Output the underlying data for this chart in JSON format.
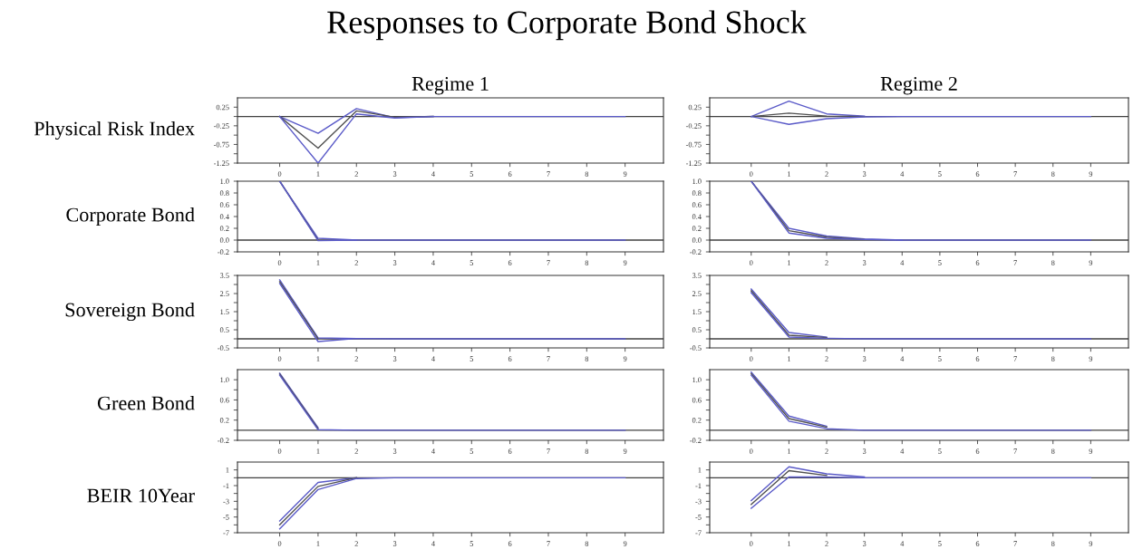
{
  "chart_data": [
    {
      "type": "line",
      "title": "Regime 1",
      "ylabel": "Physical Risk Index",
      "annotations": [
        "Responses to Corporate Bond Shock"
      ],
      "x": [
        0,
        1,
        2,
        3,
        4,
        5,
        6,
        7,
        8,
        9
      ],
      "xlim": [
        -1.1,
        10
      ],
      "xticks": [
        0,
        1,
        2,
        3,
        4,
        5,
        6,
        7,
        8,
        9
      ],
      "ylim": [
        -1.25,
        0.5
      ],
      "yticks": [
        0.25,
        {
          "value": 0,
          "label": null
        },
        -0.25,
        {
          "value": -0.5,
          "label": null
        },
        -0.75,
        {
          "value": -1.0,
          "label": null
        },
        -1.25
      ],
      "ref_lines": [
        {
          "axis": "y",
          "value": 0,
          "color": "#404040"
        }
      ],
      "grid": false,
      "legend": false,
      "series": [
        {
          "color": "#5a5ac8",
          "values": [
            0,
            -0.45,
            0.21,
            -0.03,
            0,
            null,
            null,
            null,
            null,
            null
          ]
        },
        {
          "color": "#505050",
          "values": [
            0,
            -0.85,
            0.15,
            -0.02,
            0,
            null,
            null,
            null,
            null,
            null
          ]
        },
        {
          "color": "#5a5ac8",
          "values": [
            0,
            -1.25,
            0.07,
            -0.04,
            0,
            0,
            0,
            0,
            0,
            0
          ]
        }
      ]
    },
    {
      "type": "line",
      "title": "Regime 2",
      "x": [
        0,
        1,
        2,
        3,
        4,
        5,
        6,
        7,
        8,
        9
      ],
      "xlim": [
        -1.1,
        10
      ],
      "xticks": [
        0,
        1,
        2,
        3,
        4,
        5,
        6,
        7,
        8,
        9
      ],
      "ylim": [
        -1.25,
        0.5
      ],
      "yticks": [
        0.25,
        {
          "value": 0,
          "label": null
        },
        -0.25,
        {
          "value": -0.5,
          "label": null
        },
        -0.75,
        {
          "value": -1.0,
          "label": null
        },
        -1.25
      ],
      "ref_lines": [
        {
          "axis": "y",
          "value": 0,
          "color": "#404040"
        }
      ],
      "grid": false,
      "legend": false,
      "series": [
        {
          "color": "#5a5ac8",
          "values": [
            0,
            0.41,
            0.07,
            0.01,
            null,
            null,
            null,
            null,
            null,
            null
          ]
        },
        {
          "color": "#505050",
          "values": [
            0,
            0.09,
            0.01,
            0,
            null,
            null,
            null,
            null,
            null,
            null
          ]
        },
        {
          "color": "#5a5ac8",
          "values": [
            0,
            -0.21,
            -0.06,
            -0.01,
            0,
            0,
            0,
            0,
            0,
            0
          ]
        }
      ]
    },
    {
      "type": "line",
      "ylabel": "Corporate Bond",
      "x": [
        0,
        1,
        2,
        3,
        4,
        5,
        6,
        7,
        8,
        9
      ],
      "xlim": [
        -1.1,
        10
      ],
      "xticks": [
        0,
        1,
        2,
        3,
        4,
        5,
        6,
        7,
        8,
        9
      ],
      "ylim": [
        -0.2,
        1.0
      ],
      "yticks": [
        {
          "value": 1.0,
          "label": "1.0"
        },
        0.8,
        0.6,
        0.4,
        0.2,
        {
          "value": 0,
          "label": "0.0"
        },
        -0.2
      ],
      "ref_lines": [
        {
          "axis": "y",
          "value": 0,
          "color": "#404040"
        }
      ],
      "grid": false,
      "legend": false,
      "series": [
        {
          "color": "#5a5ac8",
          "values": [
            1.0,
            0.03,
            0,
            null,
            null,
            null,
            null,
            null,
            null,
            null
          ]
        },
        {
          "color": "#505050",
          "values": [
            1.0,
            0.0,
            null,
            null,
            null,
            null,
            null,
            null,
            null,
            null
          ]
        },
        {
          "color": "#5a5ac8",
          "values": [
            1.0,
            -0.01,
            0,
            0,
            0,
            0,
            0,
            0,
            0,
            0
          ]
        }
      ]
    },
    {
      "type": "line",
      "x": [
        0,
        1,
        2,
        3,
        4,
        5,
        6,
        7,
        8,
        9
      ],
      "xlim": [
        -1.1,
        10
      ],
      "xticks": [
        0,
        1,
        2,
        3,
        4,
        5,
        6,
        7,
        8,
        9
      ],
      "ylim": [
        -0.2,
        1.0
      ],
      "yticks": [
        {
          "value": 1.0,
          "label": "1.0"
        },
        0.8,
        0.6,
        0.4,
        0.2,
        {
          "value": 0,
          "label": "0.0"
        },
        -0.2
      ],
      "ref_lines": [
        {
          "axis": "y",
          "value": 0,
          "color": "#404040"
        }
      ],
      "grid": false,
      "legend": false,
      "series": [
        {
          "color": "#5a5ac8",
          "values": [
            1.0,
            0.2,
            0.07,
            0.02,
            0,
            null,
            null,
            null,
            null,
            null
          ]
        },
        {
          "color": "#505050",
          "values": [
            1.0,
            0.16,
            0.05,
            0.01,
            null,
            null,
            null,
            null,
            null,
            null
          ]
        },
        {
          "color": "#5a5ac8",
          "values": [
            1.0,
            0.12,
            0.03,
            0.01,
            0,
            0,
            0,
            0,
            0,
            0
          ]
        }
      ]
    },
    {
      "type": "line",
      "ylabel": "Sovereign Bond",
      "x": [
        0,
        1,
        2,
        3,
        4,
        5,
        6,
        7,
        8,
        9
      ],
      "xlim": [
        -1.1,
        10
      ],
      "xticks": [
        0,
        1,
        2,
        3,
        4,
        5,
        6,
        7,
        8,
        9
      ],
      "ylim": [
        -0.5,
        3.5
      ],
      "yticks": [
        3.5,
        {
          "value": 3.0,
          "label": null
        },
        2.5,
        {
          "value": 2.0,
          "label": null
        },
        1.5,
        {
          "value": 1.0,
          "label": null
        },
        0.5,
        {
          "value": 0,
          "label": null
        },
        -0.5
      ],
      "ref_lines": [
        {
          "axis": "y",
          "value": 0,
          "color": "#404040"
        }
      ],
      "grid": false,
      "legend": false,
      "series": [
        {
          "color": "#5a5ac8",
          "values": [
            3.25,
            0.05,
            0.02,
            null,
            null,
            null,
            null,
            null,
            null,
            null
          ]
        },
        {
          "color": "#505050",
          "values": [
            3.15,
            0.0,
            null,
            null,
            null,
            null,
            null,
            null,
            null,
            null
          ]
        },
        {
          "color": "#5a5ac8",
          "values": [
            3.05,
            -0.15,
            0.02,
            0,
            0,
            0,
            0,
            0,
            0,
            0
          ]
        }
      ]
    },
    {
      "type": "line",
      "x": [
        0,
        1,
        2,
        3,
        4,
        5,
        6,
        7,
        8,
        9
      ],
      "xlim": [
        -1.1,
        10
      ],
      "xticks": [
        0,
        1,
        2,
        3,
        4,
        5,
        6,
        7,
        8,
        9
      ],
      "ylim": [
        -0.5,
        3.5
      ],
      "yticks": [
        3.5,
        {
          "value": 3.0,
          "label": null
        },
        2.5,
        {
          "value": 2.0,
          "label": null
        },
        1.5,
        {
          "value": 1.0,
          "label": null
        },
        0.5,
        {
          "value": 0,
          "label": null
        },
        -0.5
      ],
      "ref_lines": [
        {
          "axis": "y",
          "value": 0,
          "color": "#404040"
        }
      ],
      "grid": false,
      "legend": false,
      "series": [
        {
          "color": "#5a5ac8",
          "values": [
            2.75,
            0.35,
            0.1,
            null,
            null,
            null,
            null,
            null,
            null,
            null
          ]
        },
        {
          "color": "#505050",
          "values": [
            2.65,
            0.2,
            0.07,
            null,
            null,
            null,
            null,
            null,
            null,
            null
          ]
        },
        {
          "color": "#5a5ac8",
          "values": [
            2.55,
            0.1,
            0.03,
            0.0,
            0,
            0,
            0,
            0,
            0,
            0
          ]
        }
      ]
    },
    {
      "type": "line",
      "ylabel": "Green Bond",
      "x": [
        0,
        1,
        2,
        3,
        4,
        5,
        6,
        7,
        8,
        9
      ],
      "xlim": [
        -1.1,
        10
      ],
      "xticks": [
        0,
        1,
        2,
        3,
        4,
        5,
        6,
        7,
        8,
        9
      ],
      "ylim": [
        -0.2,
        1.2
      ],
      "yticks": [
        {
          "value": 1.0,
          "label": "1.0"
        },
        {
          "value": 0.8,
          "label": null
        },
        0.6,
        {
          "value": 0.4,
          "label": null
        },
        0.2,
        {
          "value": 0,
          "label": null
        },
        -0.2
      ],
      "ref_lines": [
        {
          "axis": "y",
          "value": 0,
          "color": "#404040"
        }
      ],
      "grid": false,
      "legend": false,
      "series": [
        {
          "color": "#5a5ac8",
          "values": [
            1.13,
            0.05,
            null,
            null,
            null,
            null,
            null,
            null,
            null,
            null
          ]
        },
        {
          "color": "#505050",
          "values": [
            1.11,
            0.03,
            null,
            null,
            null,
            null,
            null,
            null,
            null,
            null
          ]
        },
        {
          "color": "#5a5ac8",
          "values": [
            1.09,
            0.01,
            0,
            0,
            0,
            0,
            0,
            0,
            0,
            0
          ]
        }
      ]
    },
    {
      "type": "line",
      "x": [
        0,
        1,
        2,
        3,
        4,
        5,
        6,
        7,
        8,
        9
      ],
      "xlim": [
        -1.1,
        10
      ],
      "xticks": [
        0,
        1,
        2,
        3,
        4,
        5,
        6,
        7,
        8,
        9
      ],
      "ylim": [
        -0.2,
        1.2
      ],
      "yticks": [
        {
          "value": 1.0,
          "label": "1.0"
        },
        {
          "value": 0.8,
          "label": null
        },
        0.6,
        {
          "value": 0.4,
          "label": null
        },
        0.2,
        {
          "value": 0,
          "label": null
        },
        -0.2
      ],
      "ref_lines": [
        {
          "axis": "y",
          "value": 0,
          "color": "#404040"
        }
      ],
      "grid": false,
      "legend": false,
      "series": [
        {
          "color": "#5a5ac8",
          "values": [
            1.15,
            0.28,
            0.08,
            null,
            null,
            null,
            null,
            null,
            null,
            null
          ]
        },
        {
          "color": "#505050",
          "values": [
            1.12,
            0.23,
            0.06,
            null,
            null,
            null,
            null,
            null,
            null,
            null
          ]
        },
        {
          "color": "#5a5ac8",
          "values": [
            1.09,
            0.18,
            0.03,
            0,
            0,
            0,
            0,
            0,
            0,
            0
          ]
        }
      ]
    },
    {
      "type": "line",
      "ylabel": "BEIR 10Year",
      "x": [
        0,
        1,
        2,
        3,
        4,
        5,
        6,
        7,
        8,
        9
      ],
      "xlim": [
        -1.1,
        10
      ],
      "xticks": [
        0,
        1,
        2,
        3,
        4,
        5,
        6,
        7,
        8,
        9
      ],
      "ylim": [
        -7,
        2
      ],
      "yticks": [
        1,
        {
          "value": 0,
          "label": null
        },
        -1,
        {
          "value": -2,
          "label": null
        },
        -3,
        {
          "value": -4,
          "label": null
        },
        -5,
        {
          "value": -6,
          "label": null
        },
        -7
      ],
      "ref_lines": [
        {
          "axis": "y",
          "value": 0,
          "color": "#404040"
        }
      ],
      "grid": false,
      "legend": false,
      "series": [
        {
          "color": "#5a5ac8",
          "values": [
            -5.5,
            -0.6,
            0,
            null,
            null,
            null,
            null,
            null,
            null,
            null
          ]
        },
        {
          "color": "#505050",
          "values": [
            -6,
            -1.1,
            0,
            null,
            null,
            null,
            null,
            null,
            null,
            null
          ]
        },
        {
          "color": "#5a5ac8",
          "values": [
            -6.5,
            -1.5,
            -0.1,
            0,
            0,
            0,
            0,
            0,
            0,
            0
          ]
        }
      ]
    },
    {
      "type": "line",
      "x": [
        0,
        1,
        2,
        3,
        4,
        5,
        6,
        7,
        8,
        9
      ],
      "xlim": [
        -1.1,
        10
      ],
      "xticks": [
        0,
        1,
        2,
        3,
        4,
        5,
        6,
        7,
        8,
        9
      ],
      "ylim": [
        -7,
        2
      ],
      "yticks": [
        1,
        {
          "value": 0,
          "label": null
        },
        -1,
        {
          "value": -2,
          "label": null
        },
        -3,
        {
          "value": -4,
          "label": null
        },
        -5,
        {
          "value": -6,
          "label": null
        },
        -7
      ],
      "ref_lines": [
        {
          "axis": "y",
          "value": 0,
          "color": "#404040"
        }
      ],
      "grid": false,
      "legend": false,
      "series": [
        {
          "color": "#5a5ac8",
          "values": [
            -2.9,
            1.4,
            0.5,
            0.1,
            null,
            null,
            null,
            null,
            null,
            null
          ]
        },
        {
          "color": "#505050",
          "values": [
            -3.4,
            0.9,
            0.3,
            null,
            null,
            null,
            null,
            null,
            null,
            null
          ]
        },
        {
          "color": "#5a5ac8",
          "values": [
            -3.9,
            0.1,
            0.1,
            0.0,
            0,
            0,
            0,
            0,
            0,
            0
          ]
        }
      ]
    }
  ]
}
